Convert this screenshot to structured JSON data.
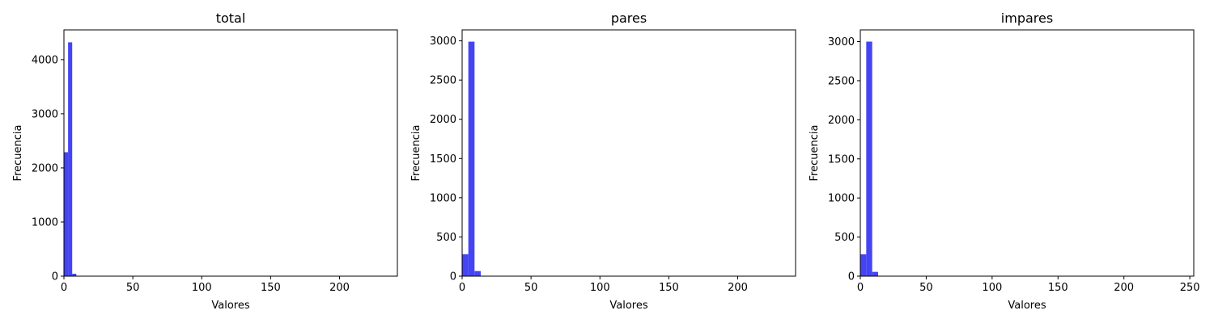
{
  "chart_data": [
    {
      "type": "bar",
      "title": "total",
      "xlabel": "Valores",
      "ylabel": "Frecuencia",
      "bar_color": "#4444f4",
      "xlim": [
        0,
        242
      ],
      "ylim": [
        0,
        4550
      ],
      "xticks": [
        0,
        50,
        100,
        150,
        200
      ],
      "yticks": [
        0,
        1000,
        2000,
        3000,
        4000
      ],
      "bins": [
        {
          "x0": 0,
          "x1": 3,
          "value": 2290
        },
        {
          "x0": 3,
          "x1": 6,
          "value": 4320
        },
        {
          "x0": 6,
          "x1": 9,
          "value": 45
        },
        {
          "x0": 9,
          "x1": 12,
          "value": 5
        }
      ]
    },
    {
      "type": "bar",
      "title": "pares",
      "xlabel": "Valores",
      "ylabel": "Frecuencia",
      "bar_color": "#4444f4",
      "xlim": [
        0,
        242
      ],
      "ylim": [
        0,
        3140
      ],
      "xticks": [
        0,
        50,
        100,
        150,
        200
      ],
      "yticks": [
        0,
        500,
        1000,
        1500,
        2000,
        2500,
        3000
      ],
      "bins": [
        {
          "x0": 0,
          "x1": 4.5,
          "value": 280
        },
        {
          "x0": 4.5,
          "x1": 9,
          "value": 2990
        },
        {
          "x0": 9,
          "x1": 13.5,
          "value": 65
        },
        {
          "x0": 13.5,
          "x1": 18,
          "value": 3
        }
      ]
    },
    {
      "type": "bar",
      "title": "impares",
      "xlabel": "Valores",
      "ylabel": "Frecuencia",
      "bar_color": "#4444f4",
      "xlim": [
        0,
        253
      ],
      "ylim": [
        0,
        3150
      ],
      "xticks": [
        0,
        50,
        100,
        150,
        200,
        250
      ],
      "yticks": [
        0,
        500,
        1000,
        1500,
        2000,
        2500,
        3000
      ],
      "bins": [
        {
          "x0": 0,
          "x1": 4.5,
          "value": 280
        },
        {
          "x0": 4.5,
          "x1": 9,
          "value": 3000
        },
        {
          "x0": 9,
          "x1": 13.5,
          "value": 55
        },
        {
          "x0": 13.5,
          "x1": 18,
          "value": 3
        }
      ]
    }
  ]
}
